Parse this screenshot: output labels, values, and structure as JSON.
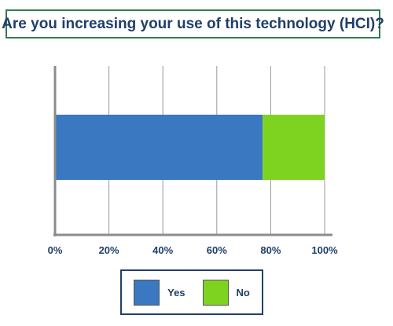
{
  "chart_data": {
    "type": "bar",
    "orientation": "horizontal",
    "stacked": true,
    "title": "Are you increasing your use of this technology (HCI)?",
    "categories": [
      ""
    ],
    "series": [
      {
        "name": "Yes",
        "values": [
          77
        ],
        "color": "#3a78c2"
      },
      {
        "name": "No",
        "values": [
          23
        ],
        "color": "#7ed321"
      }
    ],
    "xlim": [
      0,
      100
    ],
    "xticks": [
      "0%",
      "20%",
      "40%",
      "60%",
      "80%",
      "100%"
    ],
    "xtick_values": [
      0,
      20,
      40,
      60,
      80,
      100
    ],
    "grid": true,
    "legend_position": "bottom"
  }
}
